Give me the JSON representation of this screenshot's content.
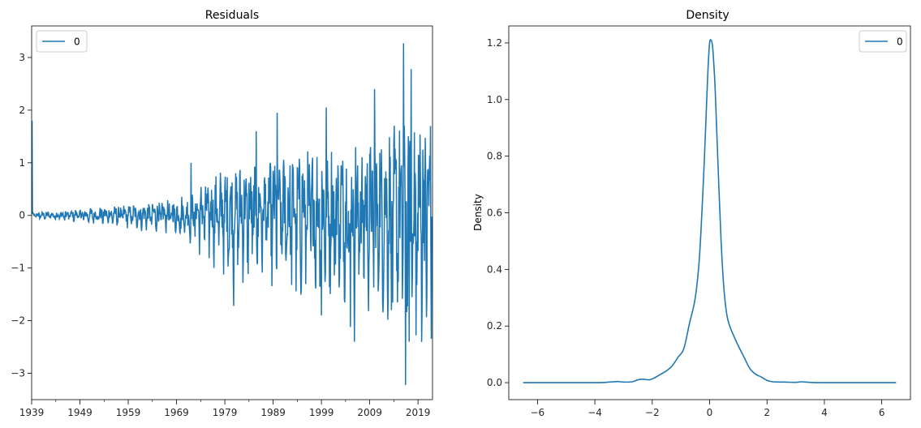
{
  "chart_data": [
    {
      "type": "line",
      "title": "Residuals",
      "xlabel": "",
      "ylabel": "",
      "xlim": [
        1939,
        2022
      ],
      "ylim": [
        -3.5,
        3.6
      ],
      "x_ticks": [
        "1939",
        "1949",
        "1959",
        "1969",
        "1979",
        "1989",
        "1999",
        "2009",
        "2019"
      ],
      "y_ticks": [
        "−3",
        "−2",
        "−1",
        "0",
        "1",
        "2",
        "3"
      ],
      "y_tick_values": [
        -3,
        -2,
        -1,
        0,
        1,
        2,
        3
      ],
      "legend": {
        "position": "upper-left",
        "entries": [
          "0"
        ]
      },
      "color": "#1f77b4",
      "grid": false,
      "amplitude_envelope": [
        {
          "x": 1939,
          "a": 0.08
        },
        {
          "x": 1949,
          "a": 0.18
        },
        {
          "x": 1959,
          "a": 0.3
        },
        {
          "x": 1969,
          "a": 0.45
        },
        {
          "x": 1979,
          "a": 1.3
        },
        {
          "x": 1989,
          "a": 1.7
        },
        {
          "x": 1999,
          "a": 1.9
        },
        {
          "x": 2009,
          "a": 2.1
        },
        {
          "x": 2019,
          "a": 2.8
        }
      ],
      "notable_points": [
        {
          "x": 1939.1,
          "y": 1.8
        },
        {
          "x": 1972.0,
          "y": 1.0
        },
        {
          "x": 1980.8,
          "y": -1.72
        },
        {
          "x": 1985.5,
          "y": 1.6
        },
        {
          "x": 1989.8,
          "y": 1.95
        },
        {
          "x": 1999.0,
          "y": -1.9
        },
        {
          "x": 2000.0,
          "y": 2.05
        },
        {
          "x": 2005.0,
          "y": -2.12
        },
        {
          "x": 2005.8,
          "y": -2.4
        },
        {
          "x": 2010.0,
          "y": 2.4
        },
        {
          "x": 2013.5,
          "y": -1.8
        },
        {
          "x": 2016.0,
          "y": 3.27
        },
        {
          "x": 2016.4,
          "y": -3.22
        },
        {
          "x": 2017.2,
          "y": -2.4
        },
        {
          "x": 2017.6,
          "y": 2.78
        },
        {
          "x": 2018.6,
          "y": -2.28
        },
        {
          "x": 2021.6,
          "y": 1.7
        }
      ]
    },
    {
      "type": "line",
      "title": "Density",
      "xlabel": "",
      "ylabel": "Density",
      "xlim": [
        -7.0,
        7.0
      ],
      "ylim": [
        -0.06,
        1.26
      ],
      "x_ticks": [
        "−6",
        "−4",
        "−2",
        "0",
        "2",
        "4",
        "6"
      ],
      "x_tick_values": [
        -6,
        -4,
        -2,
        0,
        2,
        4,
        6
      ],
      "y_ticks": [
        "0.0",
        "0.2",
        "0.4",
        "0.6",
        "0.8",
        "1.0",
        "1.2"
      ],
      "y_tick_values": [
        0.0,
        0.2,
        0.4,
        0.6,
        0.8,
        1.0,
        1.2
      ],
      "legend": {
        "position": "upper-right",
        "entries": [
          "0"
        ]
      },
      "color": "#1f77b4",
      "grid": false,
      "series": [
        {
          "name": "0",
          "x": [
            -6.5,
            -4.0,
            -3.5,
            -3.2,
            -3.0,
            -2.7,
            -2.5,
            -2.3,
            -2.1,
            -1.9,
            -1.7,
            -1.5,
            -1.3,
            -1.1,
            -0.9,
            -0.7,
            -0.5,
            -0.35,
            -0.2,
            -0.1,
            -0.05,
            0.0,
            0.05,
            0.1,
            0.15,
            0.2,
            0.3,
            0.4,
            0.5,
            0.6,
            0.7,
            0.8,
            1.0,
            1.2,
            1.4,
            1.6,
            1.8,
            2.0,
            2.2,
            2.6,
            3.0,
            3.2,
            3.5,
            4.0,
            6.5
          ],
          "y": [
            0.0,
            0.0,
            0.002,
            0.004,
            0.002,
            0.003,
            0.01,
            0.012,
            0.01,
            0.018,
            0.03,
            0.042,
            0.06,
            0.09,
            0.12,
            0.21,
            0.3,
            0.45,
            0.75,
            1.0,
            1.12,
            1.2,
            1.21,
            1.19,
            1.12,
            1.02,
            0.75,
            0.5,
            0.33,
            0.24,
            0.2,
            0.175,
            0.13,
            0.09,
            0.05,
            0.03,
            0.02,
            0.008,
            0.003,
            0.002,
            0.001,
            0.003,
            0.001,
            0.0,
            0.0
          ]
        }
      ]
    }
  ]
}
